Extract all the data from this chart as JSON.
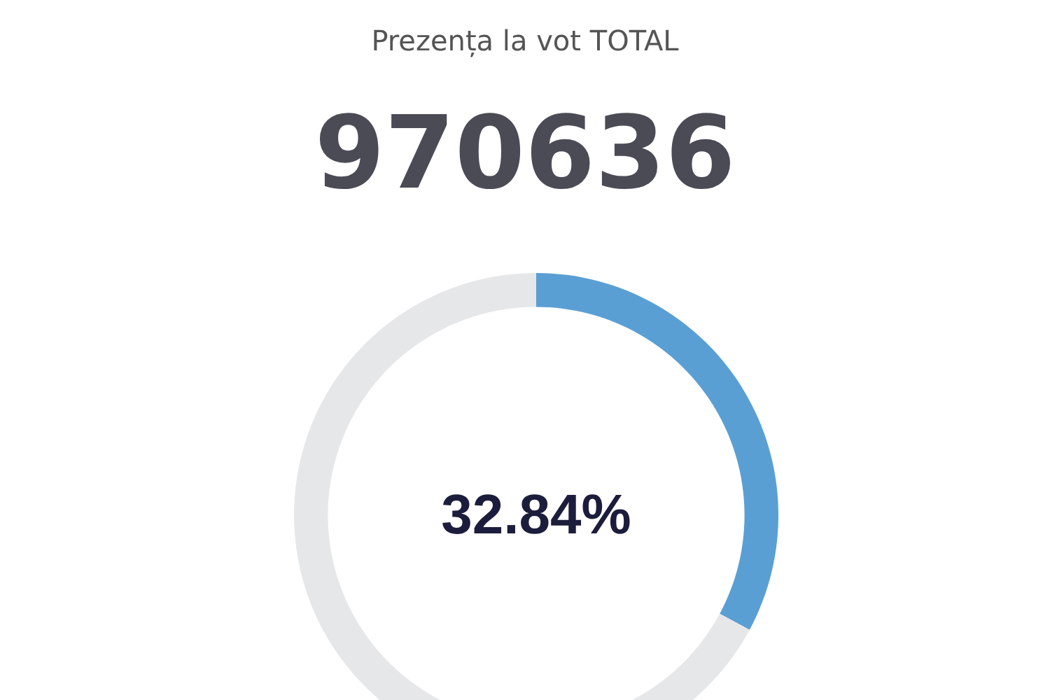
{
  "chart_data": {
    "type": "donut",
    "title": "Prezența la vot TOTAL",
    "subtitle": "970636",
    "categories": [
      null,
      null
    ],
    "values": [
      32.84,
      67.16
    ],
    "colors": [
      "#5a9fd4",
      "#e6e7e9"
    ],
    "value_labels": [
      "32.84%",
      null
    ]
  }
}
